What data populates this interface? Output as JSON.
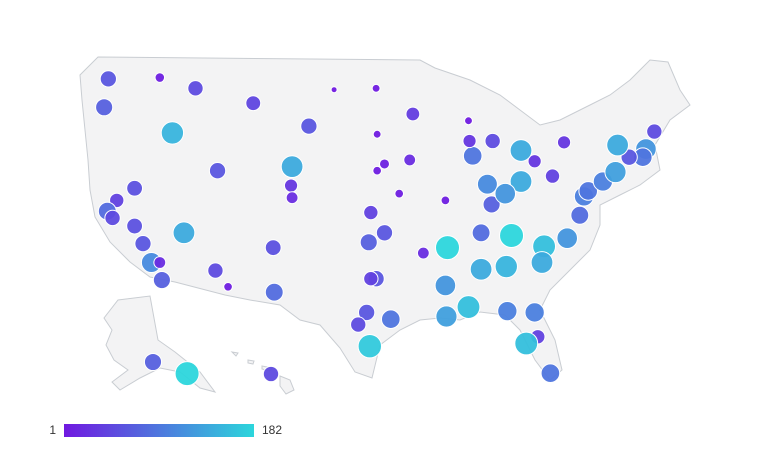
{
  "chart_data": {
    "type": "bubble-map",
    "lon": [
      -122.3,
      -122.7,
      -117.4,
      -114,
      -116.2,
      -108.5,
      -100.8,
      -96.8,
      -103.2,
      -93.3,
      -96.7,
      -88,
      -119.8,
      -121.5,
      -122.4,
      -121.9,
      -119.8,
      -119,
      -118.2,
      -117.4,
      -117.2,
      -115.1,
      -112.1,
      -110.9,
      -111.9,
      -104.8,
      -104.9,
      -104.8,
      -106.6,
      -106.5,
      -96,
      -96.7,
      -94.6,
      -97.3,
      -97.5,
      -96,
      -96.8,
      -97.3,
      -97.7,
      -98.5,
      -95.4,
      -97.4,
      -93.6,
      -87.6,
      -87.9,
      -86.2,
      -90.2,
      -90,
      -92.3,
      -86.8,
      -85.8,
      -84.4,
      -86.8,
      -90.2,
      -90.1,
      -88,
      -84.3,
      -81.7,
      -81.4,
      -82.5,
      -80.2,
      -80.8,
      -78.6,
      -81,
      -83.9,
      -77.4,
      -77,
      -76.6,
      -75.2,
      -74,
      -71.1,
      -71.4,
      -72.7,
      -73.8,
      -78.9,
      -80,
      -81.7,
      -83,
      -84.5,
      -83,
      -85.7,
      -70.3,
      -149.9,
      -134.4,
      -157.9
    ],
    "lat": [
      47.6,
      45.5,
      47.7,
      46.9,
      43.6,
      45.8,
      46.8,
      46.9,
      44.1,
      45.0,
      43.5,
      44.5,
      39.5,
      38.6,
      37.8,
      37.3,
      36.7,
      35.4,
      34.0,
      34.0,
      32.7,
      36.2,
      33.4,
      32.2,
      40.8,
      41.1,
      39.7,
      38.8,
      35.1,
      31.8,
      41.3,
      40.8,
      39.1,
      37.7,
      35.5,
      36.2,
      32.8,
      32.8,
      30.3,
      29.4,
      29.8,
      27.8,
      41.6,
      41.9,
      43.0,
      39.8,
      38.6,
      35.1,
      34.7,
      36.2,
      38.3,
      33.7,
      33.5,
      32.3,
      30.0,
      30.7,
      30.4,
      30.3,
      28.5,
      28,
      25.8,
      35.2,
      35.8,
      34,
      36,
      37.5,
      38.9,
      39.3,
      40,
      40.7,
      42.4,
      41.8,
      41.8,
      42.7,
      42.9,
      40.4,
      41.5,
      40,
      39.1,
      42.3,
      43,
      43.7,
      61.2,
      58.3,
      21.3
    ],
    "values": [
      60,
      70,
      8,
      50,
      150,
      45,
      1,
      3,
      60,
      35,
      3,
      3,
      55,
      40,
      80,
      50,
      55,
      60,
      110,
      20,
      70,
      140,
      50,
      5,
      60,
      140,
      30,
      20,
      55,
      80,
      10,
      5,
      5,
      40,
      70,
      60,
      60,
      40,
      60,
      50,
      90,
      170,
      20,
      90,
      30,
      110,
      5,
      182,
      20,
      80,
      70,
      150,
      140,
      120,
      130,
      160,
      100,
      100,
      40,
      160,
      90,
      160,
      120,
      140,
      182,
      80,
      100,
      90,
      100,
      130,
      120,
      90,
      60,
      140,
      30,
      40,
      30,
      140,
      120,
      140,
      50,
      50,
      70,
      182,
      50
    ],
    "color_range": [
      "#7018e0",
      "#2cd6dc"
    ],
    "legend": {
      "min": 1,
      "max": 182
    }
  }
}
